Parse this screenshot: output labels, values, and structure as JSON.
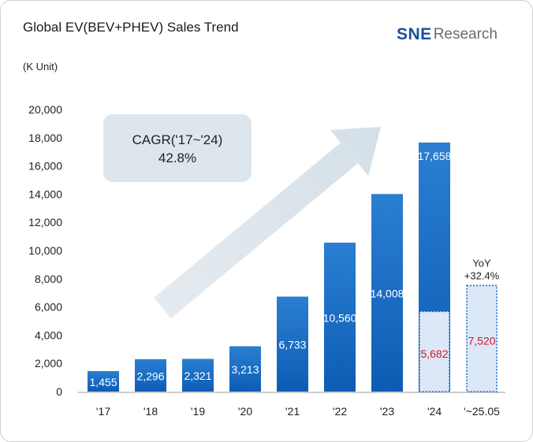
{
  "header": {
    "title": "Global EV(BEV+PHEV) Sales Trend",
    "unit": "(K Unit)",
    "logo_prefix": "SNE",
    "logo_suffix": "Research"
  },
  "colors": {
    "bar_top": "#2a7fd2",
    "bar_bottom": "#0d5cb4",
    "partial_fill": "#dce8f8",
    "partial_border": "#1a6fd0",
    "partial_label": "#e0141e",
    "cagr_box": "#dde6ec",
    "arrow": "#d4dfe7"
  },
  "chart_data": {
    "type": "bar",
    "categories": [
      "'17",
      "'18",
      "'19",
      "'20",
      "'21",
      "'22",
      "'23",
      "'24",
      "'~25.05"
    ],
    "values": [
      1455,
      2296,
      2321,
      3213,
      6733,
      10560,
      14008,
      17658,
      null
    ],
    "value_labels": [
      "1,455",
      "2,296",
      "2,321",
      "3,213",
      "6,733",
      "10,560",
      "14,008",
      "17,658",
      ""
    ],
    "partial_values": [
      null,
      null,
      null,
      null,
      null,
      null,
      null,
      5682,
      7520
    ],
    "partial_labels": [
      "",
      "",
      "",
      "",
      "",
      "",
      "",
      "5,682",
      "7,520"
    ],
    "ylim": [
      0,
      20000
    ],
    "yticks": [
      0,
      2000,
      4000,
      6000,
      8000,
      10000,
      12000,
      14000,
      16000,
      18000,
      20000
    ],
    "ytick_labels": [
      "0",
      "2,000",
      "4,000",
      "6,000",
      "8,000",
      "10,000",
      "12,000",
      "14,000",
      "16,000",
      "18,000",
      "20,000"
    ],
    "annotations": {
      "cagr_title": "CAGR('17~'24)",
      "cagr_value": "42.8%",
      "yoy_title": "YoY",
      "yoy_value": "+32.4%"
    },
    "grid": false
  }
}
